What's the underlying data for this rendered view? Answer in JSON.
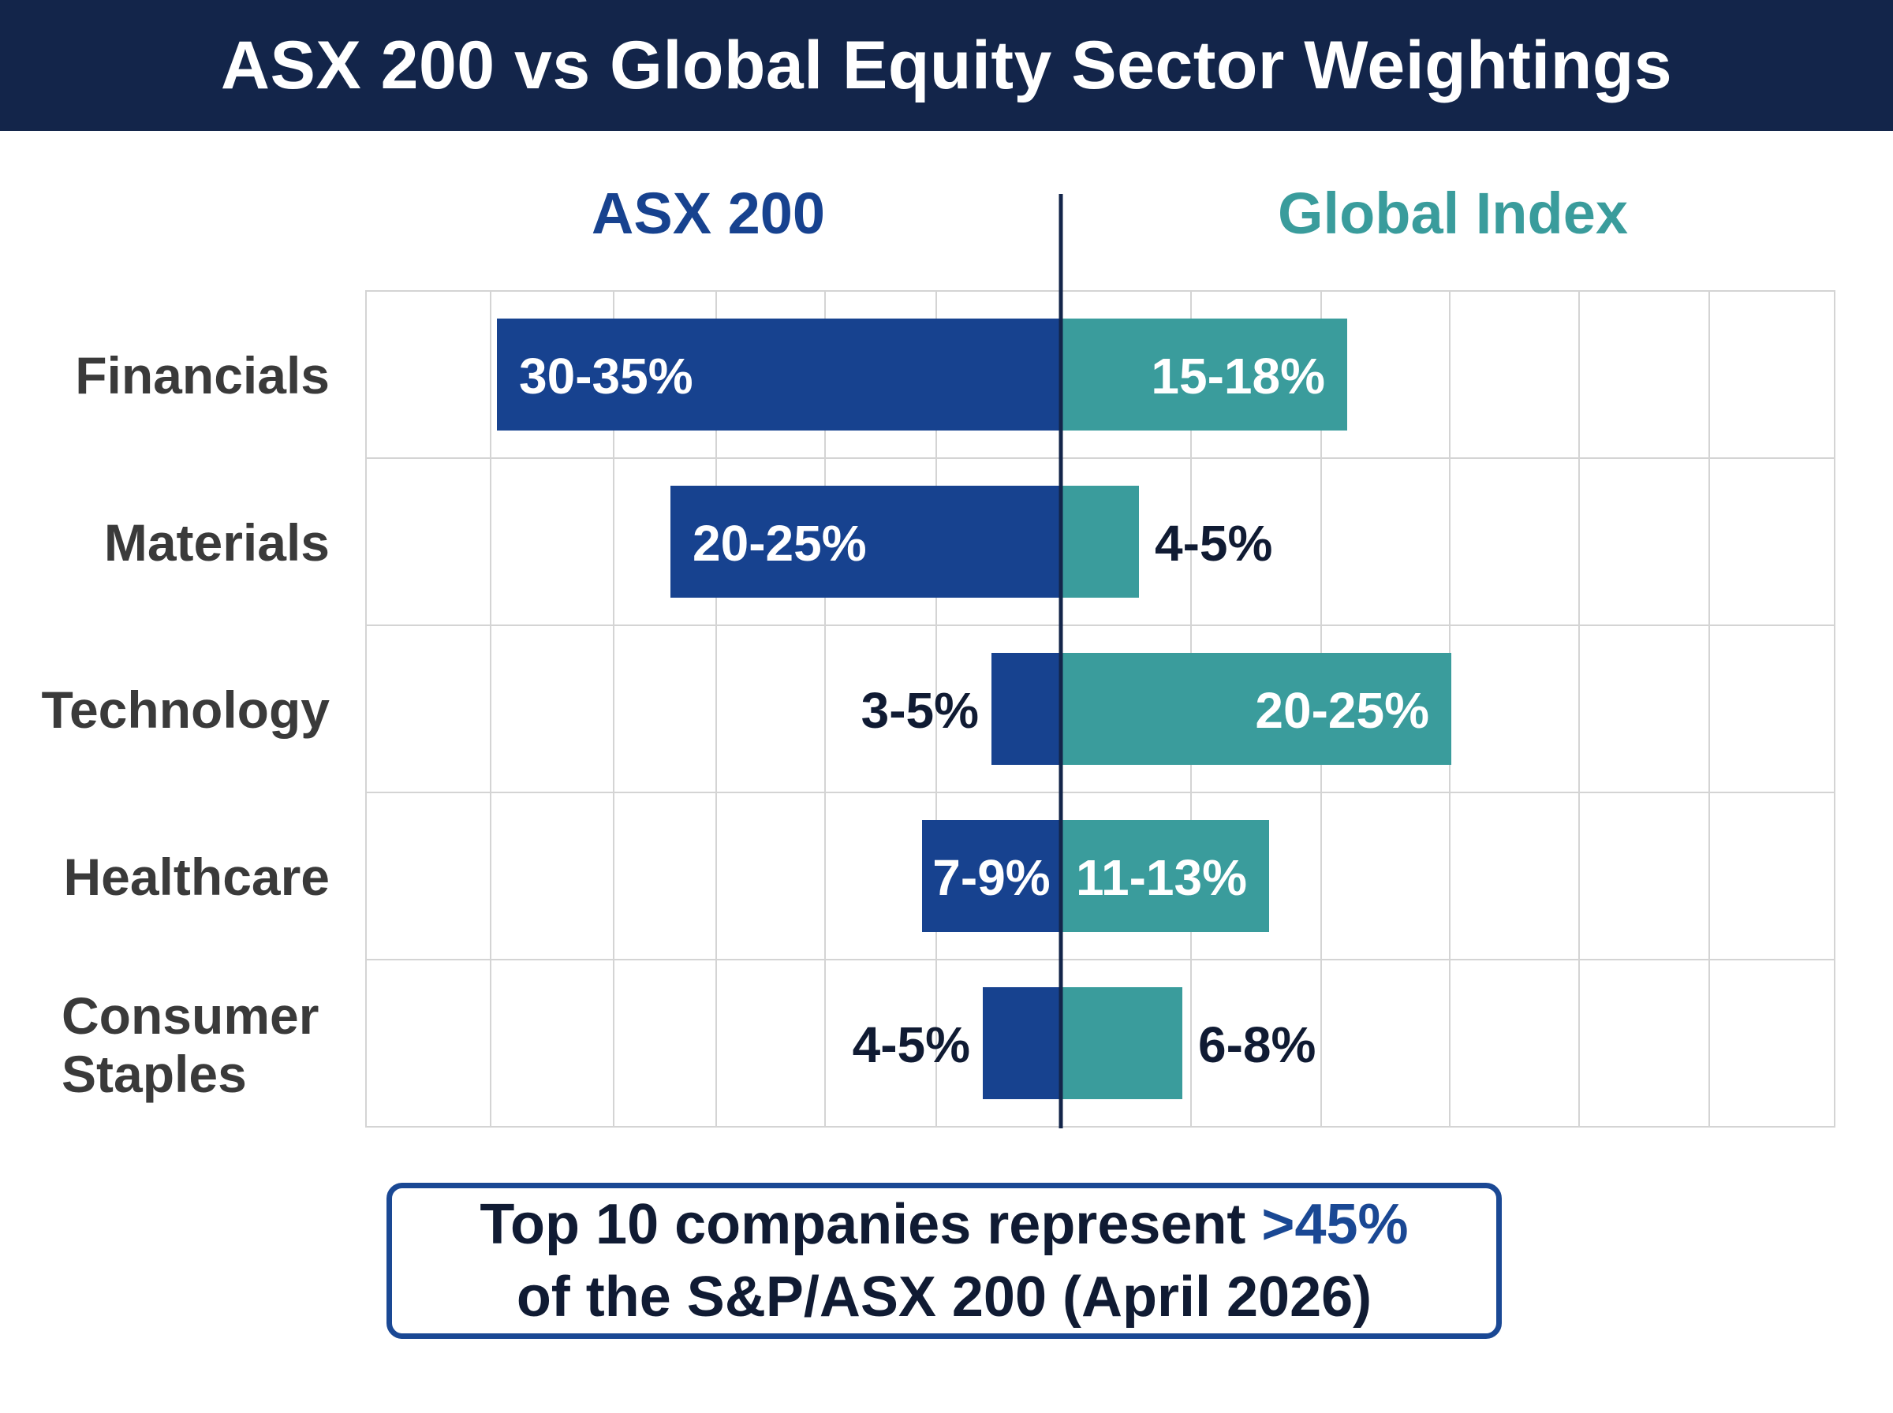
{
  "title": "ASX 200 vs Global Equity Sector Weightings",
  "colors": {
    "header_bg": "#13254a",
    "asx": "#17428f",
    "global": "#3a9c9c",
    "text_dark": "#101b33",
    "label": "#3a3a3a",
    "grid": "#d4d4d4"
  },
  "chart_data": {
    "type": "bar",
    "orientation": "horizontal-diverging",
    "grid": true,
    "categories": [
      "Financials",
      "Materials",
      "Technology",
      "Healthcare",
      "Consumer Staples"
    ],
    "series": [
      {
        "name": "ASX 200",
        "values": [
          32.5,
          22.5,
          4,
          8,
          4.5
        ],
        "labels": [
          "30-35%",
          "20-25%",
          "3-5%",
          "7-9%",
          "4-5%"
        ],
        "color": "#17428f",
        "side": "left"
      },
      {
        "name": "Global Index",
        "values": [
          16.5,
          4.5,
          22.5,
          12,
          7
        ],
        "labels": [
          "15-18%",
          "4-5%",
          "20-25%",
          "11-13%",
          "6-8%"
        ],
        "color": "#3a9c9c",
        "side": "right"
      }
    ]
  },
  "callout": {
    "line1_prefix": "Top 10 companies represent ",
    "line1_highlight": ">45%",
    "line2": "of the S&P/ASX 200 (April 2026)"
  }
}
